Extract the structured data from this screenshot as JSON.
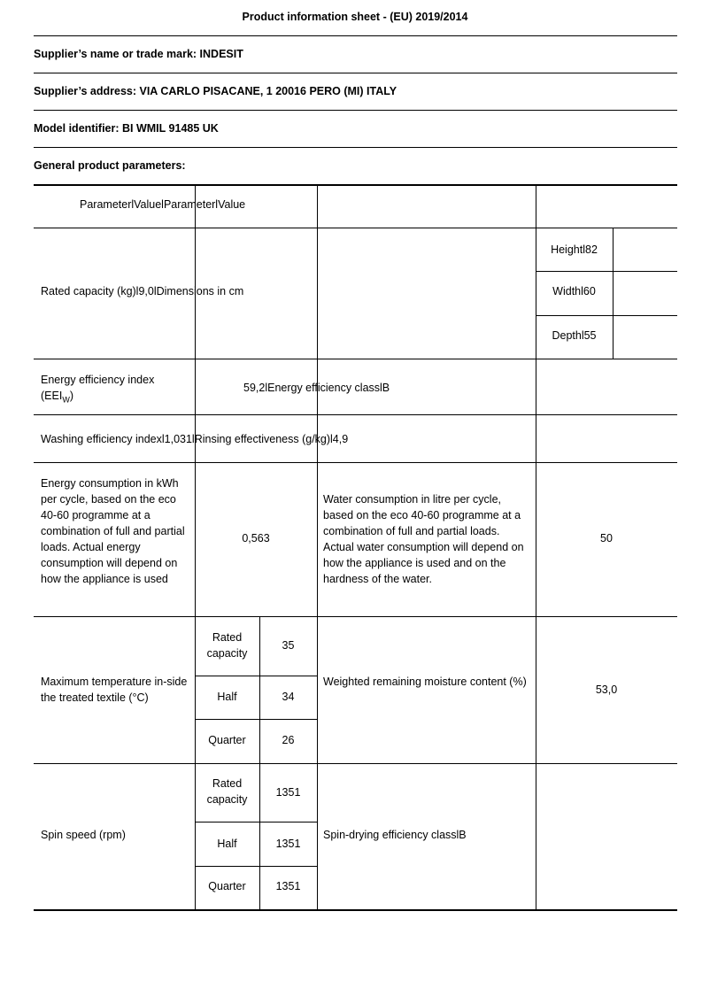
{
  "title": "Product information sheet - (EU) 2019/2014",
  "supplier_name": "Supplier’s name or trade mark: INDESIT",
  "supplier_address": "Supplier’s address: VIA CARLO PISACANE, 1 20016 PERO (MI) ITALY",
  "model_identifier": "Model identifier: BI WMIL 91485 UK",
  "general_heading": "General product parameters:",
  "table": {
    "header": "ParameterlValuelParameterlValue",
    "rated_capacity": "Rated capacity (kg)l9,0lDimensions in cm",
    "dimensions": [
      "Heightl82",
      "Widthl60",
      "Depthl55"
    ],
    "eei_label": "Energy efficiency index (EEI",
    "eei_sub": "W",
    "eei_close": ")",
    "eei_value": "59,2lEnergy efficiency classlB",
    "washing": "Washing efficiency indexl1,031lRinsing effectiveness (g/kg)l4,9",
    "energy_label": "Energy consumption in kWh per cycle, based on the eco 40-60 programme at a combination of full and partial loads. Actual energy consumption will depend on how the appliance is used",
    "energy_value": "0,563",
    "water_label": "Water consumption in litre per cycle, based on the eco 40-60 programme at a combination of full and partial loads. Actual water consumption will depend on how the appliance is used and on the hardness of the water.",
    "water_value": "50",
    "temp_label": "Maximum temperature in-side the treated textile (°C)",
    "temp_rows": [
      {
        "load": "Rated capacity",
        "value": "35"
      },
      {
        "load": "Half",
        "value": "34"
      },
      {
        "load": "Quarter",
        "value": "26"
      }
    ],
    "moisture_label": "Weighted remaining moisture content (%)",
    "moisture_value": "53,0",
    "spin_label": "Spin speed (rpm)",
    "spin_rows": [
      {
        "load": "Rated capacity",
        "value": "1351"
      },
      {
        "load": "Half",
        "value": "1351"
      },
      {
        "load": "Quarter",
        "value": "1351"
      }
    ],
    "spin_class": "Spin-drying efficiency classlB"
  }
}
